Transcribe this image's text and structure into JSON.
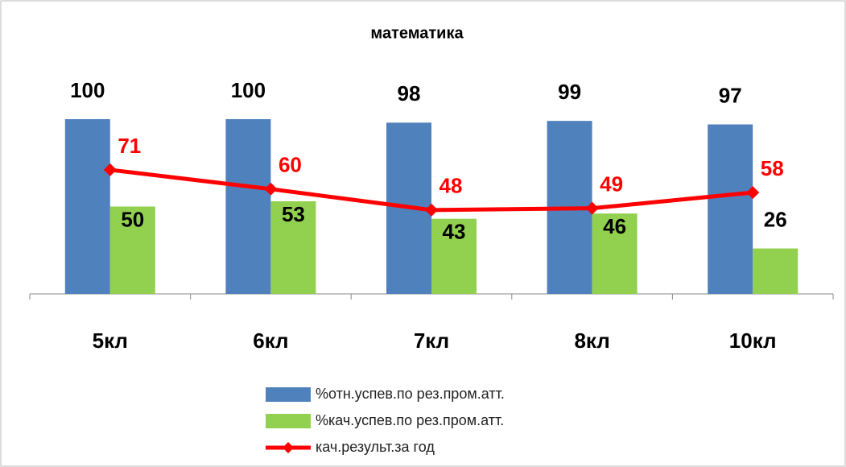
{
  "chart_data": {
    "type": "bar-line",
    "title": "математика",
    "categories": [
      "5кл",
      "6кл",
      "7кл",
      "8кл",
      "10кл"
    ],
    "series": [
      {
        "name": "%отн.успев.по рез.пром.атт.",
        "color": "#4f81bd",
        "type": "bar",
        "values": [
          100,
          100,
          98,
          99,
          97
        ]
      },
      {
        "name": "%кач.успев.по рез.пром.атт.",
        "color": "#92d050",
        "type": "bar",
        "values": [
          50,
          53,
          43,
          46,
          26
        ]
      },
      {
        "name": "кач.результ.за год",
        "color": "#ff0000",
        "type": "line",
        "values": [
          71,
          60,
          48,
          49,
          58
        ]
      }
    ],
    "legend": "bottom"
  }
}
